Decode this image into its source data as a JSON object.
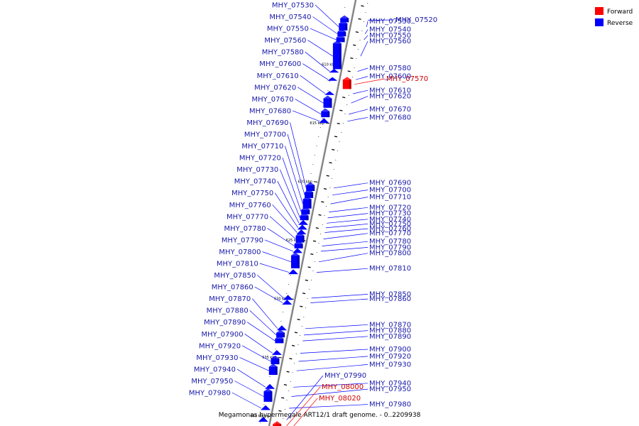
{
  "caption": "Megamonas hypermegale ART12/1 draft genome. - 0..2209938",
  "legend": [
    {
      "label": "Forward",
      "color": "#ff0000"
    },
    {
      "label": "Reverse",
      "color": "#0000ff"
    }
  ],
  "colors": {
    "forward": "#ff0000",
    "reverse": "#0000ff",
    "backbone": "#7f7f7f",
    "forward_label": "#cc0000",
    "reverse_label": "#1a1aaa"
  },
  "ticks": [
    {
      "label": "610 kbp",
      "pos": 610
    },
    {
      "label": "615 kbp",
      "pos": 615
    },
    {
      "label": "620 kbp",
      "pos": 620
    },
    {
      "label": "625 kbp",
      "pos": 625
    },
    {
      "label": "630 kbp",
      "pos": 630
    },
    {
      "label": "635 kbp",
      "pos": 635
    },
    {
      "label": "640 kbp",
      "pos": 640
    }
  ],
  "genes": [
    {
      "name": "MHY_07520",
      "strand": "reverse",
      "start": 606.05,
      "end": 606.4
    },
    {
      "name": "MHY_07530",
      "strand": "reverse",
      "start": 606.5,
      "end": 607.1
    },
    {
      "name": "MHY_07540",
      "strand": "reverse",
      "start": 607.2,
      "end": 607.6
    },
    {
      "name": "MHY_07550",
      "strand": "reverse",
      "start": 607.7,
      "end": 608.1
    },
    {
      "name": "MHY_07560",
      "strand": "reverse",
      "start": 608.2,
      "end": 610.4
    },
    {
      "name": "MHY_07570",
      "strand": "forward",
      "start": 611.3,
      "end": 612.1
    },
    {
      "name": "MHY_07580",
      "strand": "reverse",
      "start": 610.5,
      "end": 610.7
    },
    {
      "name": "MHY_07600",
      "strand": "reverse",
      "start": 611.2,
      "end": 611.4
    },
    {
      "name": "MHY_07610",
      "strand": "reverse",
      "start": 612.4,
      "end": 612.6
    },
    {
      "name": "MHY_07620",
      "strand": "reverse",
      "start": 612.9,
      "end": 613.7
    },
    {
      "name": "MHY_07670",
      "strand": "reverse",
      "start": 614.0,
      "end": 614.5
    },
    {
      "name": "MHY_07680",
      "strand": "reverse",
      "start": 614.7,
      "end": 615.0
    },
    {
      "name": "MHY_07690",
      "strand": "reverse",
      "start": 620.3,
      "end": 620.8
    },
    {
      "name": "MHY_07700",
      "strand": "reverse",
      "start": 620.9,
      "end": 621.4
    },
    {
      "name": "MHY_07710",
      "strand": "reverse",
      "start": 621.5,
      "end": 622.3
    },
    {
      "name": "MHY_07720",
      "strand": "reverse",
      "start": 622.4,
      "end": 622.8
    },
    {
      "name": "MHY_07730",
      "strand": "reverse",
      "start": 622.9,
      "end": 623.3
    },
    {
      "name": "MHY_07740",
      "strand": "reverse",
      "start": 623.4,
      "end": 623.7
    },
    {
      "name": "MHY_07750",
      "strand": "reverse",
      "start": 623.8,
      "end": 624.1
    },
    {
      "name": "MHY_07760",
      "strand": "reverse",
      "start": 624.2,
      "end": 624.5
    },
    {
      "name": "MHY_07770",
      "strand": "reverse",
      "start": 624.6,
      "end": 625.2
    },
    {
      "name": "MHY_07780",
      "strand": "reverse",
      "start": 625.3,
      "end": 625.7
    },
    {
      "name": "MHY_07790",
      "strand": "reverse",
      "start": 625.8,
      "end": 626.1
    },
    {
      "name": "MHY_07800",
      "strand": "reverse",
      "start": 626.3,
      "end": 627.4
    },
    {
      "name": "MHY_07810",
      "strand": "reverse",
      "start": 627.6,
      "end": 627.9
    },
    {
      "name": "MHY_07850",
      "strand": "reverse",
      "start": 629.8,
      "end": 630.1
    },
    {
      "name": "MHY_07860",
      "strand": "reverse",
      "start": 630.2,
      "end": 630.5
    },
    {
      "name": "MHY_07870",
      "strand": "reverse",
      "start": 632.4,
      "end": 632.7
    },
    {
      "name": "MHY_07880",
      "strand": "reverse",
      "start": 632.9,
      "end": 633.3
    },
    {
      "name": "MHY_07890",
      "strand": "reverse",
      "start": 633.4,
      "end": 633.8
    },
    {
      "name": "MHY_07900",
      "strand": "reverse",
      "start": 634.5,
      "end": 634.8
    },
    {
      "name": "MHY_07920",
      "strand": "reverse",
      "start": 635.1,
      "end": 635.6
    },
    {
      "name": "MHY_07930",
      "strand": "reverse",
      "start": 635.8,
      "end": 636.5
    },
    {
      "name": "MHY_07940",
      "strand": "reverse",
      "start": 637.4,
      "end": 637.7
    },
    {
      "name": "MHY_07950",
      "strand": "reverse",
      "start": 637.9,
      "end": 638.8
    },
    {
      "name": "MHY_07980",
      "strand": "reverse",
      "start": 639.2,
      "end": 639.5
    },
    {
      "name": "MHY_07990",
      "strand": "reverse",
      "start": 640.2,
      "end": 640.5
    },
    {
      "name": "MHY_08000",
      "strand": "forward",
      "start": 640.7,
      "end": 641.5
    },
    {
      "name": "MHY_08020",
      "strand": "forward",
      "start": 641.8,
      "end": 642.3
    }
  ]
}
